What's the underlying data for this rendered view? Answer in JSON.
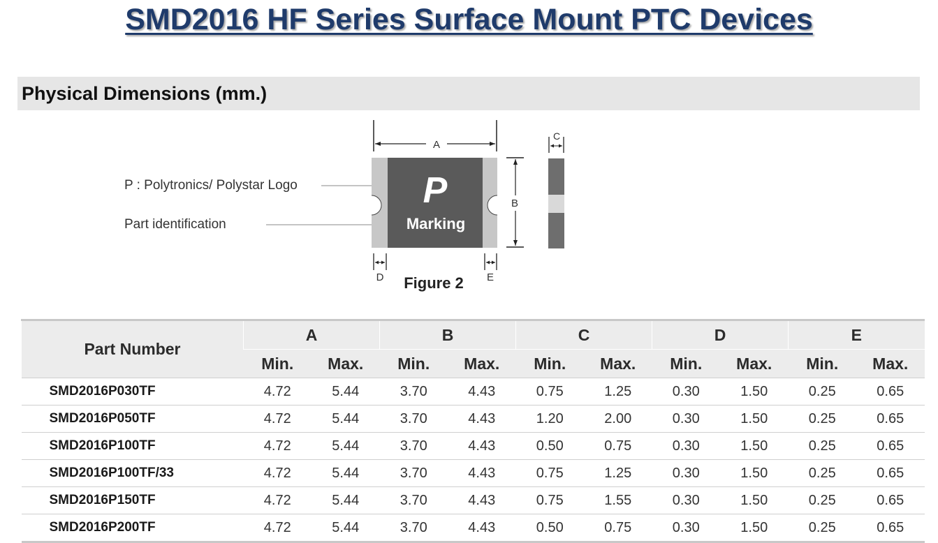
{
  "title": "SMD2016 HF Series Surface Mount PTC Devices",
  "section": {
    "title": "Physical Dimensions (mm.)"
  },
  "figure": {
    "caption": "Figure 2",
    "logo_callout": "P : Polytronics/ Polystar Logo",
    "part_callout": "Part identification",
    "logo_letter": "P",
    "marking_text": "Marking",
    "dim_labels": {
      "a": "A",
      "b": "B",
      "c": "C",
      "d": "D",
      "e": "E"
    },
    "colors": {
      "body": "#5a5a5a",
      "terminal": "#c7c7c7",
      "side_band": "#d9d9d9"
    }
  },
  "table": {
    "part_header": "Part Number",
    "groups": [
      "A",
      "B",
      "C",
      "D",
      "E"
    ],
    "min_label": "Min.",
    "max_label": "Max.",
    "rows": [
      {
        "part": "SMD2016P030TF",
        "values": [
          "4.72",
          "5.44",
          "3.70",
          "4.43",
          "0.75",
          "1.25",
          "0.30",
          "1.50",
          "0.25",
          "0.65"
        ]
      },
      {
        "part": "SMD2016P050TF",
        "values": [
          "4.72",
          "5.44",
          "3.70",
          "4.43",
          "1.20",
          "2.00",
          "0.30",
          "1.50",
          "0.25",
          "0.65"
        ]
      },
      {
        "part": "SMD2016P100TF",
        "values": [
          "4.72",
          "5.44",
          "3.70",
          "4.43",
          "0.50",
          "0.75",
          "0.30",
          "1.50",
          "0.25",
          "0.65"
        ]
      },
      {
        "part": "SMD2016P100TF/33",
        "values": [
          "4.72",
          "5.44",
          "3.70",
          "4.43",
          "0.75",
          "1.25",
          "0.30",
          "1.50",
          "0.25",
          "0.65"
        ]
      },
      {
        "part": "SMD2016P150TF",
        "values": [
          "4.72",
          "5.44",
          "3.70",
          "4.43",
          "0.75",
          "1.55",
          "0.30",
          "1.50",
          "0.25",
          "0.65"
        ]
      },
      {
        "part": "SMD2016P200TF",
        "values": [
          "4.72",
          "5.44",
          "3.70",
          "4.43",
          "0.50",
          "0.75",
          "0.30",
          "1.50",
          "0.25",
          "0.65"
        ]
      }
    ]
  }
}
